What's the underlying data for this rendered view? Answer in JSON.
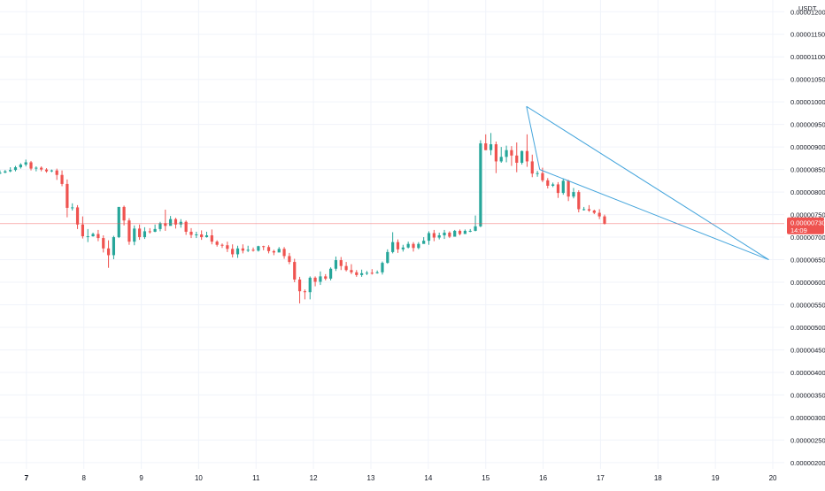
{
  "chart_data": {
    "type": "candlestick",
    "quote_currency": "USDT",
    "y_axis": {
      "ticks": [
        "0.00001200",
        "0.00001150",
        "0.00001100",
        "0.00001050",
        "0.00001000",
        "0.00000950",
        "0.00000900",
        "0.00000850",
        "0.00000800",
        "0.00000750",
        "0.00000700",
        "0.00000650",
        "0.00000600",
        "0.00000550",
        "0.00000500",
        "0.00000450",
        "0.00000400",
        "0.00000350",
        "0.00000300",
        "0.00000250",
        "0.00000200"
      ],
      "ylim": [
        1.86e-06,
        1.226e-05
      ],
      "grid": true
    },
    "x_axis": {
      "ticks": [
        "7",
        "8",
        "9",
        "10",
        "11",
        "12",
        "13",
        "14",
        "15",
        "16",
        "17",
        "18",
        "19",
        "20"
      ],
      "xlim": [
        6.54,
        20.2
      ],
      "grid": true,
      "bold_first": true
    },
    "current_price": {
      "label": "0.00000730",
      "countdown": "14:09",
      "value": 7.3e-06,
      "color": "#ef5350"
    },
    "colors": {
      "up": "#26a69a",
      "down": "#ef5350",
      "pattern": "#45a5dc",
      "grid": "#f0f3fa"
    },
    "candles_x_start": 6.54,
    "candles_x_step": 0.09,
    "candles": [
      [
        843,
        843,
        848,
        840
      ],
      [
        843,
        846,
        849,
        842
      ],
      [
        846,
        849,
        855,
        844
      ],
      [
        849,
        855,
        858,
        846
      ],
      [
        855,
        861,
        864,
        852
      ],
      [
        861,
        866,
        872,
        857
      ],
      [
        866,
        852,
        869,
        848
      ],
      [
        852,
        854,
        857,
        846
      ],
      [
        854,
        850,
        857,
        846
      ],
      [
        850,
        846,
        853,
        843
      ],
      [
        846,
        848,
        850,
        844
      ],
      [
        848,
        838,
        852,
        827
      ],
      [
        838,
        818,
        848,
        813
      ],
      [
        818,
        765,
        828,
        744
      ],
      [
        765,
        766,
        775,
        759
      ],
      [
        766,
        728,
        771,
        718
      ],
      [
        728,
        702,
        746,
        697
      ],
      [
        702,
        702,
        718,
        689
      ],
      [
        702,
        707,
        710,
        701
      ],
      [
        707,
        698,
        716,
        691
      ],
      [
        698,
        675,
        704,
        666
      ],
      [
        675,
        660,
        693,
        632
      ],
      [
        660,
        700,
        703,
        651
      ],
      [
        700,
        767,
        767,
        698
      ],
      [
        767,
        737,
        770,
        726
      ],
      [
        737,
        690,
        742,
        683
      ],
      [
        690,
        719,
        726,
        682
      ],
      [
        719,
        700,
        728,
        694
      ],
      [
        700,
        713,
        722,
        696
      ],
      [
        713,
        712,
        720,
        708
      ],
      [
        712,
        718,
        728,
        711
      ],
      [
        718,
        731,
        734,
        713
      ],
      [
        731,
        725,
        761,
        714
      ],
      [
        725,
        740,
        747,
        730
      ],
      [
        740,
        728,
        743,
        719
      ],
      [
        728,
        734,
        740,
        721
      ],
      [
        734,
        712,
        737,
        705
      ],
      [
        712,
        705,
        720,
        698
      ],
      [
        705,
        706,
        712,
        698
      ],
      [
        706,
        700,
        715,
        694
      ],
      [
        700,
        704,
        712,
        699
      ],
      [
        704,
        690,
        717,
        684
      ],
      [
        690,
        683,
        693,
        679
      ],
      [
        683,
        682,
        686,
        676
      ],
      [
        682,
        674,
        690,
        667
      ],
      [
        674,
        662,
        684,
        655
      ],
      [
        662,
        675,
        681,
        654
      ],
      [
        675,
        670,
        684,
        664
      ],
      [
        670,
        672,
        681,
        667
      ],
      [
        672,
        670,
        677,
        668
      ],
      [
        670,
        680,
        681,
        668
      ],
      [
        680,
        678,
        681,
        671
      ],
      [
        678,
        669,
        682,
        664
      ],
      [
        669,
        666,
        672,
        660
      ],
      [
        666,
        674,
        678,
        670
      ],
      [
        674,
        658,
        678,
        652
      ],
      [
        658,
        645,
        665,
        640
      ],
      [
        645,
        606,
        652,
        600
      ],
      [
        606,
        580,
        612,
        553
      ],
      [
        580,
        578,
        584,
        562
      ],
      [
        578,
        610,
        613,
        562
      ],
      [
        610,
        601,
        613,
        591
      ],
      [
        601,
        613,
        624,
        594
      ],
      [
        613,
        608,
        618,
        604
      ],
      [
        608,
        630,
        633,
        604
      ],
      [
        630,
        649,
        657,
        625
      ],
      [
        649,
        636,
        656,
        627
      ],
      [
        636,
        627,
        645,
        624
      ],
      [
        627,
        622,
        640,
        618
      ],
      [
        622,
        616,
        627,
        612
      ],
      [
        616,
        620,
        628,
        612
      ],
      [
        620,
        621,
        625,
        616
      ],
      [
        621,
        620,
        629,
        617
      ],
      [
        620,
        622,
        626,
        619
      ],
      [
        622,
        643,
        646,
        617
      ],
      [
        643,
        667,
        673,
        641
      ],
      [
        667,
        689,
        711,
        664
      ],
      [
        689,
        673,
        695,
        665
      ],
      [
        673,
        677,
        683,
        668
      ],
      [
        677,
        685,
        690,
        675
      ],
      [
        685,
        676,
        689,
        668
      ],
      [
        676,
        685,
        689,
        673
      ],
      [
        685,
        692,
        700,
        686
      ],
      [
        692,
        709,
        713,
        683
      ],
      [
        709,
        699,
        716,
        691
      ],
      [
        699,
        704,
        710,
        695
      ],
      [
        704,
        710,
        716,
        696
      ],
      [
        710,
        701,
        713,
        698
      ],
      [
        701,
        714,
        716,
        710
      ],
      [
        714,
        707,
        717,
        704
      ],
      [
        707,
        714,
        717,
        709
      ],
      [
        714,
        714,
        718,
        711
      ],
      [
        714,
        724,
        748,
        713
      ],
      [
        724,
        908,
        915,
        722
      ],
      [
        908,
        893,
        928,
        893
      ],
      [
        893,
        906,
        931,
        882
      ],
      [
        906,
        868,
        912,
        842
      ],
      [
        868,
        878,
        900,
        865
      ],
      [
        878,
        893,
        903,
        866
      ],
      [
        893,
        881,
        902,
        858
      ],
      [
        881,
        865,
        910,
        844
      ],
      [
        865,
        891,
        892,
        861
      ],
      [
        891,
        868,
        928,
        856
      ],
      [
        868,
        841,
        883,
        833
      ],
      [
        841,
        842,
        847,
        834
      ],
      [
        842,
        826,
        854,
        822
      ],
      [
        826,
        814,
        831,
        808
      ],
      [
        814,
        817,
        821,
        811
      ],
      [
        817,
        798,
        822,
        787
      ],
      [
        798,
        825,
        829,
        794
      ],
      [
        825,
        790,
        827,
        780
      ],
      [
        790,
        800,
        809,
        786
      ],
      [
        800,
        762,
        804,
        755
      ],
      [
        762,
        762,
        767,
        759
      ],
      [
        762,
        759,
        771,
        756
      ],
      [
        759,
        754,
        761,
        751
      ],
      [
        754,
        746,
        762,
        740
      ],
      [
        746,
        730,
        750,
        728
      ]
    ],
    "annotations": [
      {
        "type": "falling-wedge",
        "upper": [
          [
            15.71,
            9.9e-06
          ],
          [
            18.52,
            7.73e-06
          ]
        ],
        "lower": [
          [
            15.94,
            8.5e-06
          ],
          [
            18.52,
            7.32e-06
          ]
        ],
        "apex": [
          19.93,
          6.5e-06
        ]
      }
    ]
  }
}
